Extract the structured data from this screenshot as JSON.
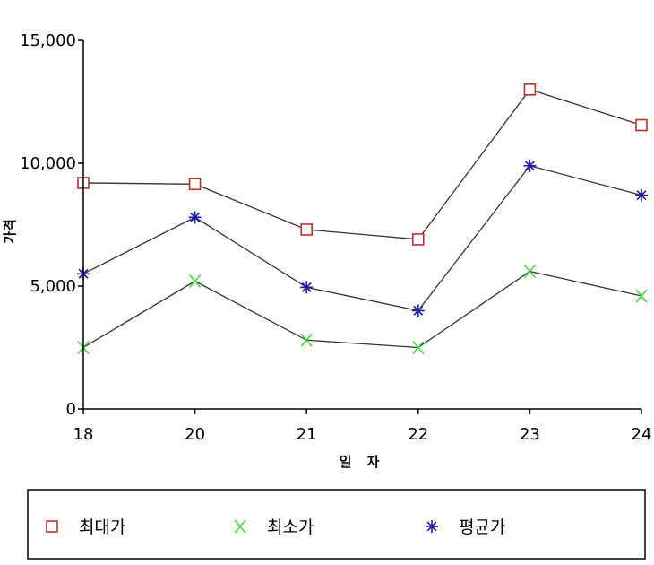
{
  "chart_data": {
    "type": "line",
    "xlabel": "일 자",
    "ylabel": "가격",
    "ylim": [
      0,
      15000
    ],
    "yticks": [
      0,
      5000,
      10000,
      15000
    ],
    "ytick_labels": [
      "0",
      "5,000",
      "10,000",
      "15,000"
    ],
    "categories": [
      "18",
      "20",
      "21",
      "22",
      "23",
      "24"
    ],
    "series": [
      {
        "name": "최대가",
        "marker": "square",
        "marker_color": "#c0302a",
        "values": [
          9200,
          9150,
          7300,
          6900,
          13000,
          11550
        ]
      },
      {
        "name": "최소가",
        "marker": "x",
        "marker_color": "#33dd33",
        "values": [
          2500,
          5200,
          2800,
          2500,
          5600,
          4600
        ]
      },
      {
        "name": "평균가",
        "marker": "asterisk",
        "marker_color": "#1a1aaa",
        "values": [
          5500,
          7800,
          4950,
          4000,
          9900,
          8700
        ]
      }
    ],
    "line_color": "#333333",
    "grid": false,
    "legend_position": "bottom"
  }
}
